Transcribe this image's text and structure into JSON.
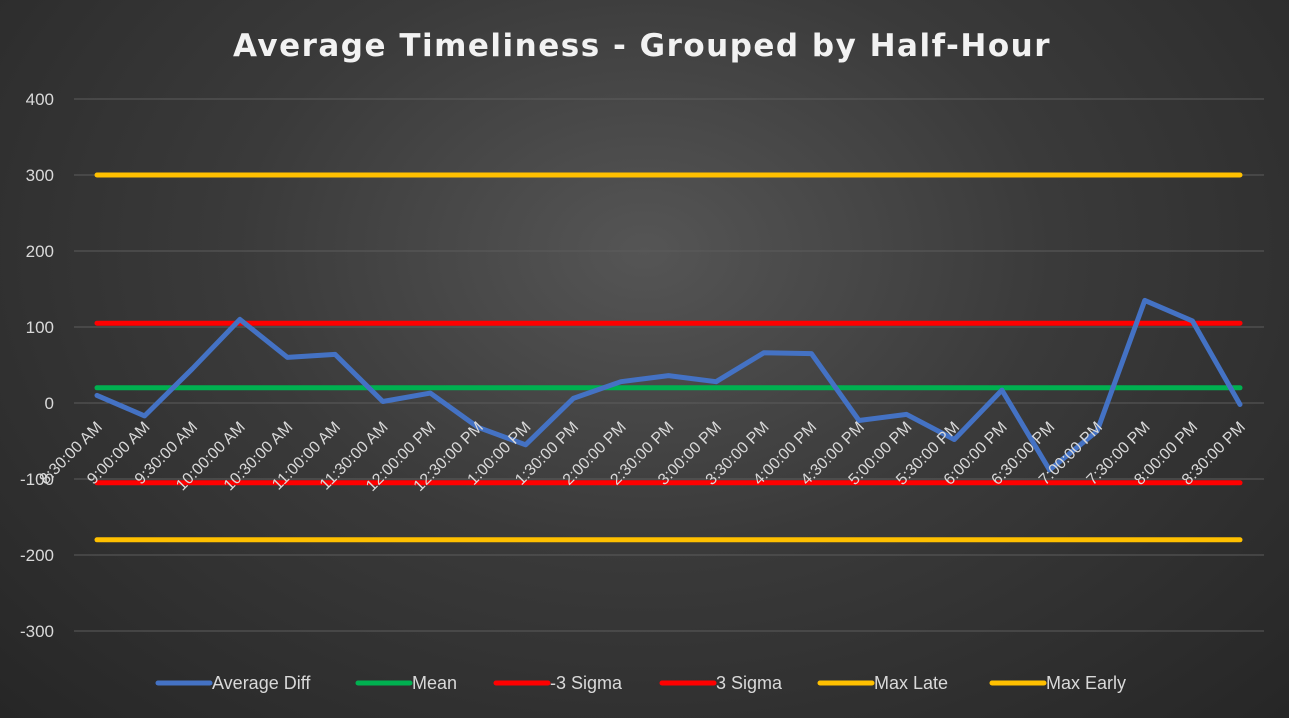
{
  "chart_data": {
    "type": "line",
    "title": "Average Timeliness - Grouped by Half-Hour",
    "xlabel": "",
    "ylabel": "",
    "ylim": [
      -300,
      400
    ],
    "yticks": [
      400,
      300,
      200,
      100,
      0,
      -100,
      -200,
      -300
    ],
    "grid": true,
    "legend_position": "bottom",
    "categories": [
      "8:30:00 AM",
      "9:00:00 AM",
      "9:30:00 AM",
      "10:00:00 AM",
      "10:30:00 AM",
      "11:00:00 AM",
      "11:30:00 AM",
      "12:00:00 PM",
      "12:30:00 PM",
      "1:00:00 PM",
      "1:30:00 PM",
      "2:00:00 PM",
      "2:30:00 PM",
      "3:00:00 PM",
      "3:30:00 PM",
      "4:00:00 PM",
      "4:30:00 PM",
      "5:00:00 PM",
      "5:30:00 PM",
      "6:00:00 PM",
      "6:30:00 PM",
      "7:00:00 PM",
      "7:30:00 PM",
      "8:00:00 PM",
      "8:30:00 PM"
    ],
    "series": [
      {
        "name": "Average Diff",
        "color": "#4472c4",
        "values": [
          10,
          -17,
          45,
          110,
          60,
          64,
          2,
          13,
          -32,
          -55,
          6,
          28,
          36,
          28,
          66,
          65,
          -23,
          -15,
          -48,
          17,
          -88,
          -37,
          135,
          108,
          -2
        ]
      },
      {
        "name": "Mean",
        "color": "#00b050",
        "values": [
          20,
          20,
          20,
          20,
          20,
          20,
          20,
          20,
          20,
          20,
          20,
          20,
          20,
          20,
          20,
          20,
          20,
          20,
          20,
          20,
          20,
          20,
          20,
          20,
          20
        ]
      },
      {
        "name": "-3 Sigma",
        "color": "#ff0000",
        "values": [
          -105,
          -105,
          -105,
          -105,
          -105,
          -105,
          -105,
          -105,
          -105,
          -105,
          -105,
          -105,
          -105,
          -105,
          -105,
          -105,
          -105,
          -105,
          -105,
          -105,
          -105,
          -105,
          -105,
          -105,
          -105
        ]
      },
      {
        "name": "3 Sigma",
        "color": "#ff0000",
        "values": [
          105,
          105,
          105,
          105,
          105,
          105,
          105,
          105,
          105,
          105,
          105,
          105,
          105,
          105,
          105,
          105,
          105,
          105,
          105,
          105,
          105,
          105,
          105,
          105,
          105
        ]
      },
      {
        "name": "Max Late",
        "color": "#ffc000",
        "values": [
          300,
          300,
          300,
          300,
          300,
          300,
          300,
          300,
          300,
          300,
          300,
          300,
          300,
          300,
          300,
          300,
          300,
          300,
          300,
          300,
          300,
          300,
          300,
          300,
          300
        ]
      },
      {
        "name": "Max Early",
        "color": "#ffc000",
        "values": [
          -180,
          -180,
          -180,
          -180,
          -180,
          -180,
          -180,
          -180,
          -180,
          -180,
          -180,
          -180,
          -180,
          -180,
          -180,
          -180,
          -180,
          -180,
          -180,
          -180,
          -180,
          -180,
          -180,
          -180,
          -180
        ]
      }
    ]
  }
}
